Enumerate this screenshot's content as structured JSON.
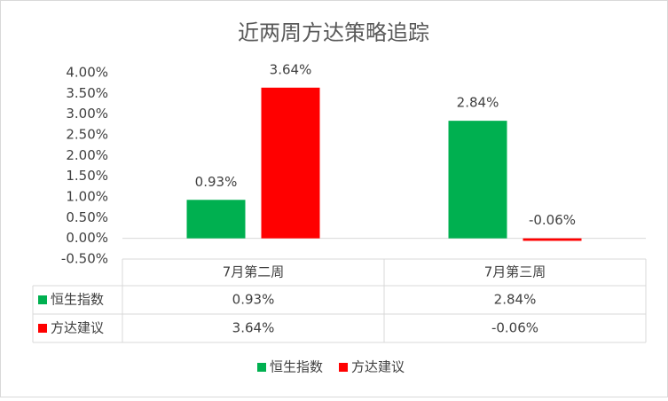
{
  "chart_data": {
    "type": "bar",
    "title": "近两周方达策略追踪",
    "categories": [
      "7月第二周",
      "7月第三周"
    ],
    "series": [
      {
        "name": "恒生指数",
        "color": "#00b050",
        "values": [
          0.93,
          2.84
        ],
        "value_labels": [
          "0.93%",
          "2.84%"
        ]
      },
      {
        "name": "方达建议",
        "color": "#ff0000",
        "values": [
          3.64,
          -0.06
        ],
        "value_labels": [
          "3.64%",
          "-0.06%"
        ]
      }
    ],
    "ylim": [
      -0.5,
      4
    ],
    "yticks": [
      {
        "value": -0.5,
        "label": "-0.50%"
      },
      {
        "value": 0,
        "label": "0.00%"
      },
      {
        "value": 0.5,
        "label": "0.50%"
      },
      {
        "value": 1,
        "label": "1.00%"
      },
      {
        "value": 1.5,
        "label": "1.50%"
      },
      {
        "value": 2,
        "label": "2.00%"
      },
      {
        "value": 2.5,
        "label": "2.50%"
      },
      {
        "value": 3,
        "label": "3.00%"
      },
      {
        "value": 3.5,
        "label": "3.50%"
      },
      {
        "value": 4,
        "label": "4.00%"
      }
    ],
    "grid": false,
    "legend": "bottom",
    "data_table": true
  }
}
